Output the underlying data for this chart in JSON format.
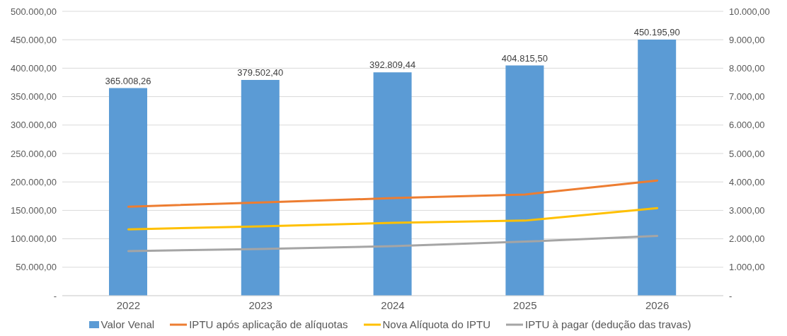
{
  "chart_data": {
    "type": "bar",
    "categories": [
      "2022",
      "2023",
      "2024",
      "2025",
      "2026"
    ],
    "series": [
      {
        "name": "Valor Venal",
        "color": "#5b9bd5",
        "values": [
          365008.26,
          379502.4,
          392809.44,
          404815.5,
          450195.9
        ],
        "value_labels": [
          "365.008,26",
          "379.502,40",
          "392.809,44",
          "404.815,50",
          "450.195,90"
        ]
      },
      {
        "name": "IPTU após aplicação de alíquotas",
        "type": "line",
        "axis": "y2",
        "color": "#ed7d31",
        "values": [
          3130,
          3280,
          3430,
          3560,
          4050
        ]
      },
      {
        "name": "Nova Alíquota do IPTU",
        "type": "line",
        "axis": "y2",
        "color": "#ffc000",
        "values": [
          2330,
          2440,
          2560,
          2640,
          3080
        ]
      },
      {
        "name": "IPTU à pagar (dedução das travas)",
        "type": "line",
        "axis": "y2",
        "color": "#a5a5a5",
        "values": [
          1570,
          1640,
          1740,
          1900,
          2100
        ]
      }
    ],
    "ylim": [
      0,
      500000
    ],
    "yticks": [
      {
        "value": 0,
        "label": "-"
      },
      {
        "value": 50000,
        "label": "50.000,00"
      },
      {
        "value": 100000,
        "label": "100.000,00"
      },
      {
        "value": 150000,
        "label": "150.000,00"
      },
      {
        "value": 200000,
        "label": "200.000,00"
      },
      {
        "value": 250000,
        "label": "250.000,00"
      },
      {
        "value": 300000,
        "label": "300.000,00"
      },
      {
        "value": 350000,
        "label": "350.000,00"
      },
      {
        "value": 400000,
        "label": "400.000,00"
      },
      {
        "value": 450000,
        "label": "450.000,00"
      },
      {
        "value": 500000,
        "label": "500.000,00"
      }
    ],
    "y2lim": [
      0,
      10000
    ],
    "y2ticks": [
      {
        "value": 0,
        "label": "-"
      },
      {
        "value": 1000,
        "label": "1.000,00"
      },
      {
        "value": 2000,
        "label": "2.000,00"
      },
      {
        "value": 3000,
        "label": "3.000,00"
      },
      {
        "value": 4000,
        "label": "4.000,00"
      },
      {
        "value": 5000,
        "label": "5.000,00"
      },
      {
        "value": 6000,
        "label": "6.000,00"
      },
      {
        "value": 7000,
        "label": "7.000,00"
      },
      {
        "value": 8000,
        "label": "8.000,00"
      },
      {
        "value": 9000,
        "label": "9.000,00"
      },
      {
        "value": 10000,
        "label": "10.000,00"
      }
    ],
    "grid": "y",
    "legend": "bottom",
    "marker": "none",
    "line_style": "solid"
  }
}
